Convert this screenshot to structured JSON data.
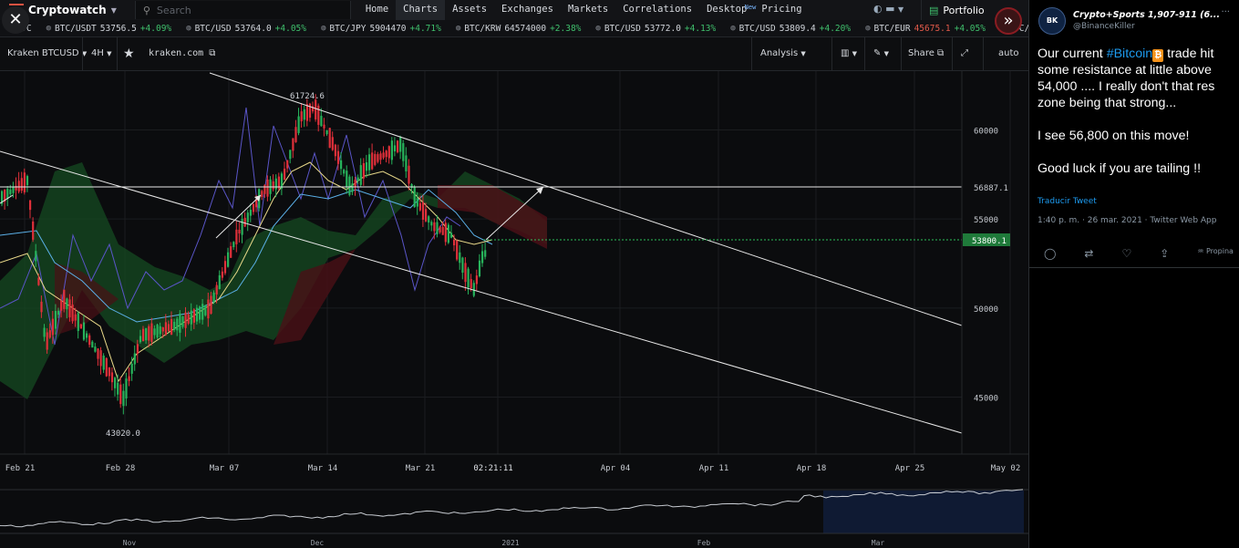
{
  "app": {
    "logo_text": "Cryptowatch",
    "search_placeholder": "Search",
    "nav": [
      {
        "label": "Home",
        "active": false
      },
      {
        "label": "Charts",
        "active": true
      },
      {
        "label": "Assets",
        "active": false
      },
      {
        "label": "Exchanges",
        "active": false
      },
      {
        "label": "Markets",
        "active": false
      },
      {
        "label": "Correlations",
        "active": false
      },
      {
        "label": "Desktop",
        "active": false,
        "badge": "New"
      },
      {
        "label": "Pricing",
        "active": false
      }
    ],
    "portfolio_label": "Portfolio"
  },
  "ticker": [
    {
      "pair": "BTC",
      "price": "",
      "change": ""
    },
    {
      "pair": "BTC/USDT",
      "price": "53756.5",
      "change": "+4.09%"
    },
    {
      "pair": "BTC/USD",
      "price": "53764.0",
      "change": "+4.05%"
    },
    {
      "pair": "BTC/JPY",
      "price": "5904470",
      "change": "+4.71%"
    },
    {
      "pair": "BTC/KRW",
      "price": "64574000",
      "change": "+2.38%"
    },
    {
      "pair": "BTC/USD",
      "price": "53772.0",
      "change": "+4.13%"
    },
    {
      "pair": "BTC/USD",
      "price": "53809.4",
      "change": "+4.20%"
    },
    {
      "pair": "BTC/EUR",
      "price": "45675.1",
      "change": "+4.05%"
    },
    {
      "pair": "BTC/USD",
      "price": "",
      "change": ""
    }
  ],
  "chart_toolbar": {
    "market": "Kraken BTCUSD",
    "interval": "4H",
    "exchange_link": "kraken.com",
    "analysis": "Analysis",
    "share": "Share",
    "scale": "auto"
  },
  "chart_data": {
    "type": "candlestick",
    "x_ticks": [
      "Feb 21",
      "Feb 28",
      "Mar 07",
      "Mar 14",
      "Mar 21",
      "02:21:11",
      "Apr 04",
      "Apr 11",
      "Apr 18",
      "Apr 25",
      "May 02"
    ],
    "y_ticks": [
      "60000",
      "55000",
      "50000",
      "45000"
    ],
    "ylim": [
      41800,
      63300
    ],
    "annotations": {
      "high": "61724.6",
      "low": "43020.0",
      "level_line": "56887.1",
      "current_price": "53800.1"
    },
    "colors": {
      "up": "#27b35b",
      "down": "#e0303a",
      "cloud_up": "#1d5a2a",
      "cloud_down": "#5a1218",
      "conversion": "#e9d98a",
      "base": "#5bb0e8",
      "lagging": "#5a55c8"
    },
    "overview_ticks": [
      "Nov",
      "Dec",
      "2021",
      "Feb",
      "Mar"
    ]
  },
  "tweet": {
    "display_name": "Crypto+Sports 1,907-911 (6...",
    "handle": "@BinanceKiller",
    "avatar_text": "BK",
    "text_1_pre": "Our current ",
    "hashtag": "#Bitcoin",
    "text_1_post": " trade hit some resistance at little above 54,000 .... I really don't that res zone being that strong...",
    "text_2": "I see 56,800 on this move!",
    "text_3": "Good luck if you are tailing !!",
    "translate": "Traducir Tweet",
    "meta": "1:40 p. m. · 26 mar. 2021 · Twitter Web App",
    "tip_label": "Propina"
  }
}
